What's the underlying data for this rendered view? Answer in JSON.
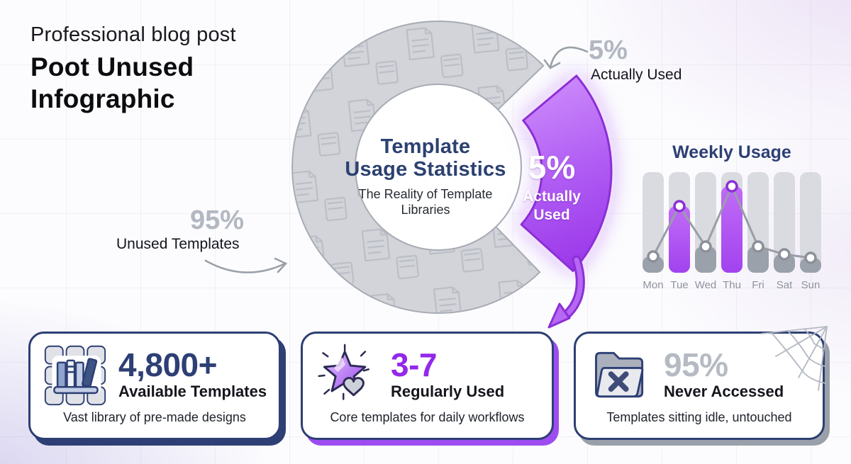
{
  "header": {
    "eyebrow": "Professional blog post",
    "title_lines": [
      "Poot Unused",
      "Infographic"
    ]
  },
  "donut": {
    "center_title_lines": [
      "Template",
      "Usage Statistics"
    ],
    "center_subtitle": "The Reality of Template Libraries",
    "slice_value": "5%",
    "slice_label": "Actually Used"
  },
  "annotations": {
    "used": {
      "value": "5%",
      "label": "Actually Used"
    },
    "unused": {
      "value": "95%",
      "label": "Unused Templates"
    }
  },
  "cards": [
    {
      "icon": "library-books-icon",
      "value": "4,800+",
      "label": "Available Templates",
      "description": "Vast library of pre-made designs",
      "shadow_color": "#2d3f74",
      "value_color": "#2d3f74"
    },
    {
      "icon": "star-heart-icon",
      "value": "3-7",
      "label": "Regularly Used",
      "description": "Core templates for daily workflows",
      "shadow_color": "#9d4cf0",
      "value_color": "#9327ea"
    },
    {
      "icon": "folder-x-icon",
      "value": "95%",
      "label": "Never Accessed",
      "description": "Templates sitting idle, untouched",
      "shadow_color": "#9aa0aa",
      "value_color": "#b5bac3"
    }
  ],
  "colors": {
    "accent_purple": "#a855f7",
    "purple_dark": "#8c2fd6",
    "navy": "#2d3f74",
    "ring_gray": "#d2d4d9",
    "muted_gray": "#9aa1ab"
  },
  "chart_data": [
    {
      "type": "pie",
      "title": "Template Usage Statistics",
      "subtitle": "The Reality of Template Libraries",
      "slices": [
        {
          "label": "Actually Used",
          "value": 5,
          "color": "#a855f7",
          "exploded": true
        },
        {
          "label": "Unused Templates",
          "value": 95,
          "color": "#d2d4d9",
          "exploded": false
        }
      ],
      "legend_position": "callouts"
    },
    {
      "type": "bar",
      "title": "Weekly Usage",
      "categories": [
        "Mon",
        "Tue",
        "Wed",
        "Thu",
        "Fri",
        "Sat",
        "Sun"
      ],
      "values": [
        16,
        66,
        26,
        86,
        26,
        18,
        15
      ],
      "highlight_categories": [
        "Tue",
        "Thu"
      ],
      "bar_color": "#9aa1ab",
      "highlight_color": "#a855f7",
      "overlay": "line",
      "ylim": [
        0,
        100
      ],
      "grid": false
    }
  ]
}
